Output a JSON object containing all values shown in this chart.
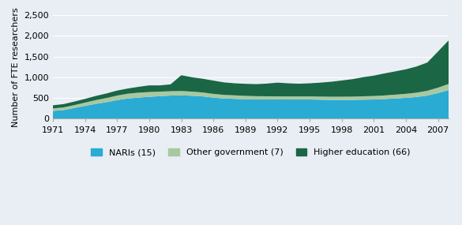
{
  "years": [
    1971,
    1972,
    1973,
    1974,
    1975,
    1976,
    1977,
    1978,
    1979,
    1980,
    1981,
    1982,
    1983,
    1984,
    1985,
    1986,
    1987,
    1988,
    1989,
    1990,
    1991,
    1992,
    1993,
    1994,
    1995,
    1996,
    1997,
    1998,
    1999,
    2000,
    2001,
    2002,
    2003,
    2004,
    2005,
    2006,
    2007,
    2008
  ],
  "naris": [
    190,
    210,
    260,
    310,
    360,
    400,
    450,
    490,
    510,
    530,
    545,
    560,
    565,
    555,
    540,
    510,
    490,
    480,
    470,
    465,
    465,
    465,
    465,
    465,
    465,
    460,
    455,
    455,
    455,
    460,
    465,
    475,
    490,
    505,
    525,
    560,
    620,
    690
  ],
  "other_gov": [
    60,
    65,
    70,
    80,
    90,
    100,
    110,
    115,
    120,
    115,
    110,
    105,
    105,
    100,
    95,
    90,
    87,
    85,
    83,
    80,
    78,
    76,
    75,
    75,
    75,
    76,
    77,
    78,
    80,
    82,
    85,
    88,
    92,
    97,
    105,
    115,
    130,
    150
  ],
  "higher_ed": [
    75,
    80,
    85,
    90,
    100,
    110,
    120,
    125,
    140,
    160,
    150,
    165,
    380,
    345,
    330,
    320,
    300,
    290,
    290,
    290,
    305,
    330,
    315,
    305,
    315,
    335,
    360,
    390,
    420,
    460,
    490,
    530,
    560,
    590,
    630,
    680,
    870,
    1050
  ],
  "colors": {
    "naris": "#29ABD4",
    "other_gov": "#A8C8A0",
    "higher_ed": "#1A6645"
  },
  "ylabel": "Number of FTE researchers",
  "ylim": [
    0,
    2500
  ],
  "yticks": [
    0,
    500,
    1000,
    1500,
    2000,
    2500
  ],
  "xtick_years": [
    1971,
    1974,
    1977,
    1980,
    1983,
    1986,
    1989,
    1992,
    1995,
    1998,
    2001,
    2004,
    2007
  ],
  "legend_labels": [
    "NARIs (15)",
    "Other government (7)",
    "Higher education (66)"
  ],
  "background_color": "#E8EEF4",
  "axis_fontsize": 8,
  "tick_fontsize": 8
}
